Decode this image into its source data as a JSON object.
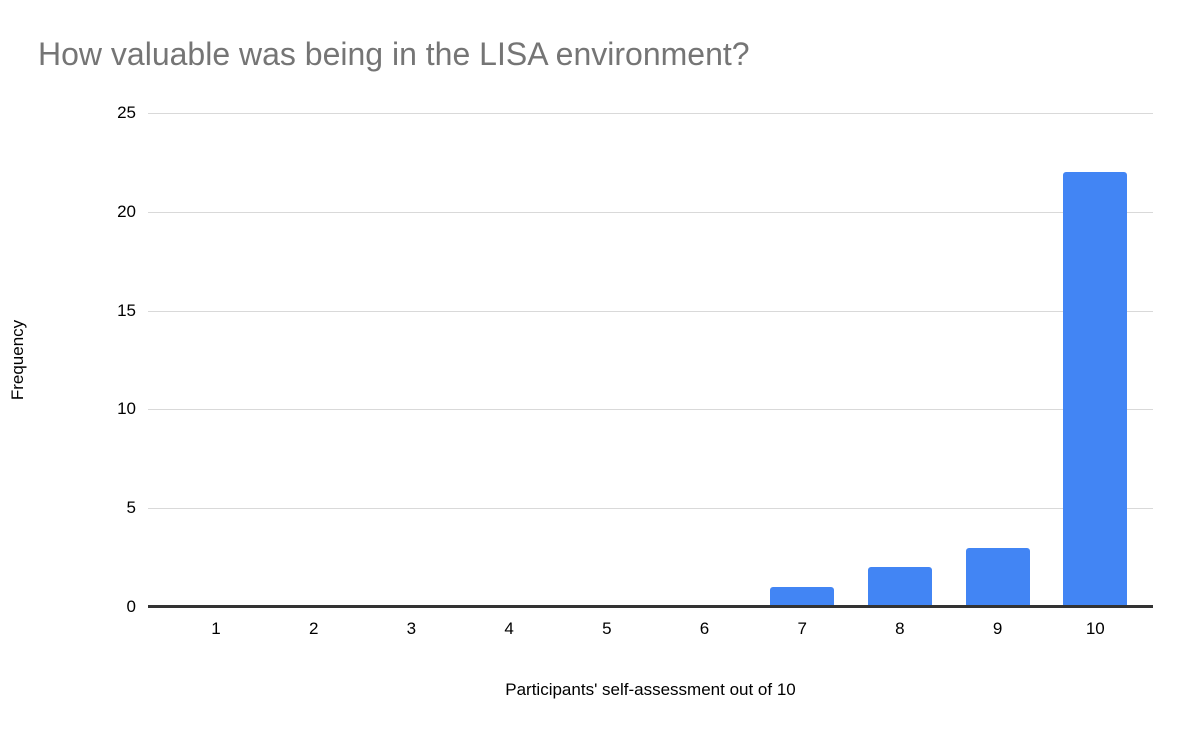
{
  "chart_data": {
    "type": "bar",
    "title": "How valuable was being in the LISA environment?",
    "xlabel": "Participants' self-assessment out of 10",
    "ylabel": "Frequency",
    "categories": [
      "1",
      "2",
      "3",
      "4",
      "5",
      "6",
      "7",
      "8",
      "9",
      "10"
    ],
    "values": [
      0,
      0,
      0,
      0,
      0,
      0,
      1,
      2,
      3,
      22
    ],
    "ylim": [
      0,
      25
    ],
    "yticks": [
      0,
      5,
      10,
      15,
      20,
      25
    ],
    "grid": true,
    "legend": "none",
    "colors": {
      "bar": "#4285f4",
      "title": "#757575",
      "gridline": "#d9d9d9",
      "axis_line": "#333333",
      "tick_text": "#000000",
      "background": "#ffffff"
    }
  }
}
